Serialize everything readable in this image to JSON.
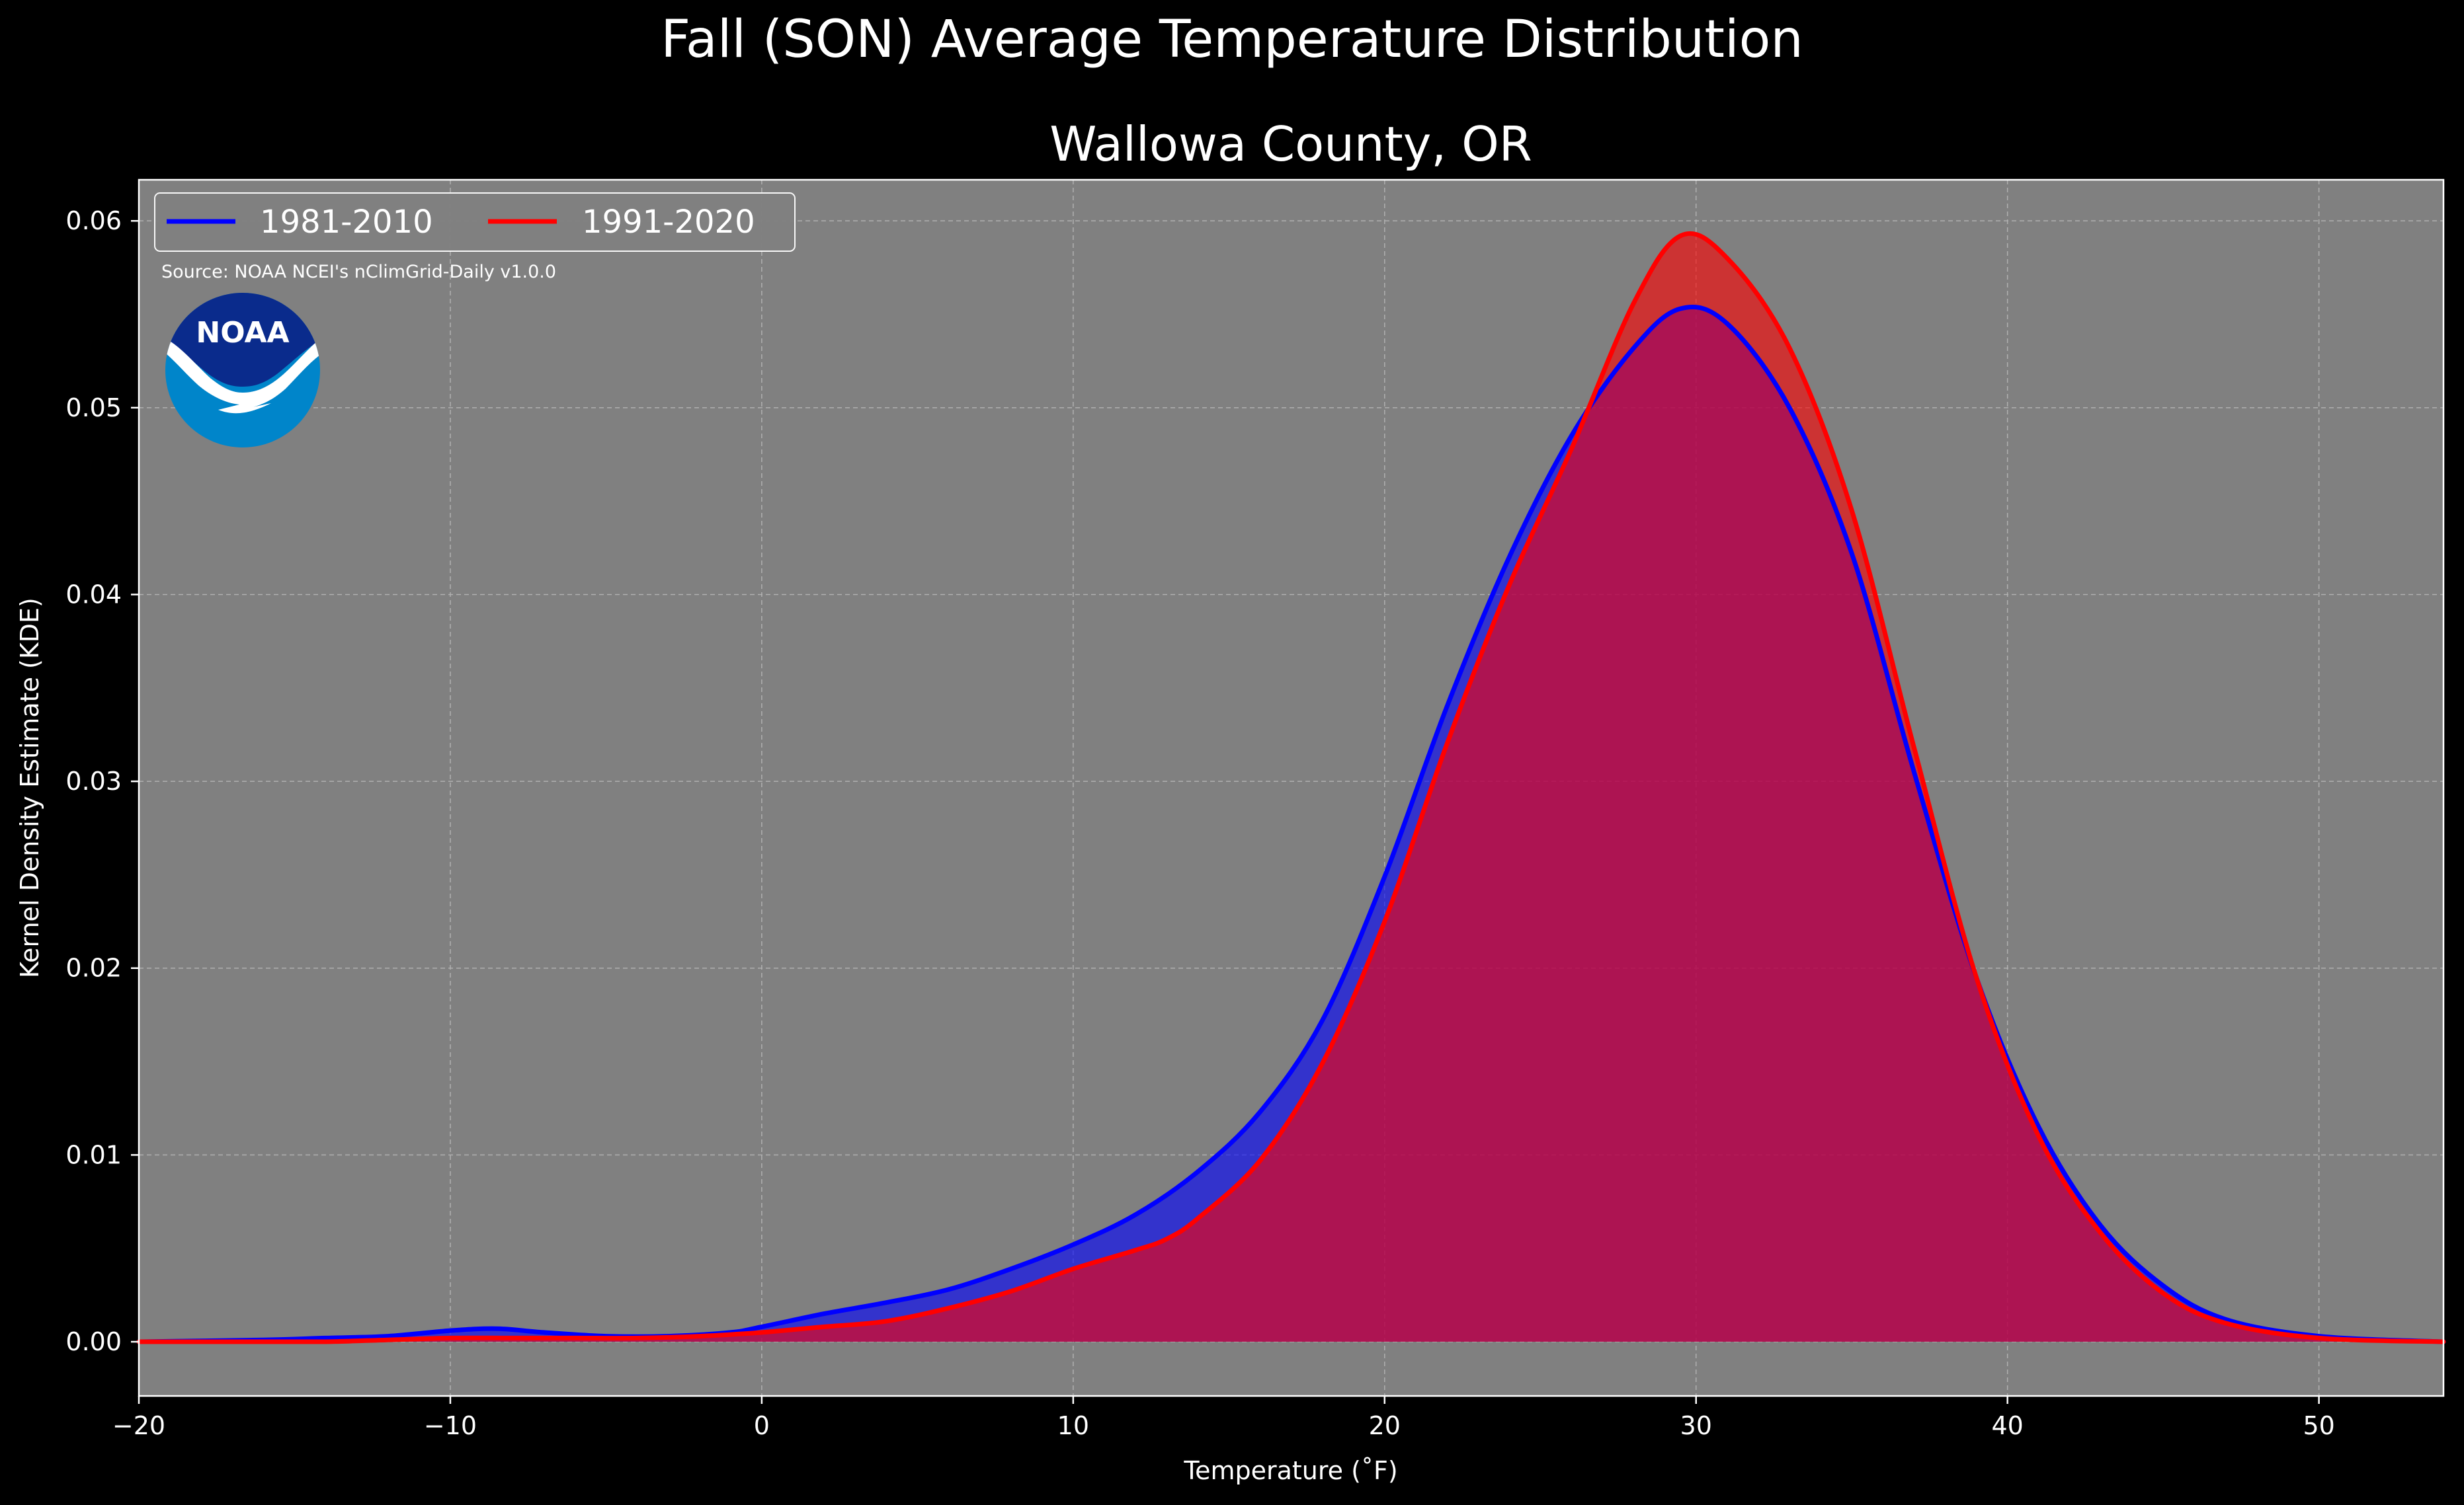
{
  "chart_data": {
    "type": "area",
    "suptitle": "Fall (SON) Average Temperature Distribution",
    "title": "Wallowa County, OR",
    "xlabel": "Temperature ($^\\circ$F)",
    "xlabel_display": "Temperature (˚F)",
    "ylabel": "Kernel Density Estimate (KDE)",
    "xlim": [
      -20,
      54
    ],
    "ylim": [
      -0.0029,
      0.0622
    ],
    "xticks": [
      -20,
      -10,
      0,
      10,
      20,
      30,
      40,
      50
    ],
    "xtick_labels": [
      "−20",
      "−10",
      "0",
      "10",
      "20",
      "30",
      "40",
      "50"
    ],
    "yticks": [
      0.0,
      0.01,
      0.02,
      0.03,
      0.04,
      0.05,
      0.06
    ],
    "ytick_labels": [
      "0.00",
      "0.01",
      "0.02",
      "0.03",
      "0.04",
      "0.05",
      "0.06"
    ],
    "grid": true,
    "legend_position": "top-left",
    "background_color": "#808080",
    "series": [
      {
        "name": "1981-2010",
        "color": "#0000ff",
        "fill_color": "#0000ff",
        "x": [
          -20,
          -16,
          -14,
          -12,
          -10,
          -8.5,
          -7,
          -5,
          -3,
          -1,
          0,
          2,
          4,
          6,
          8,
          10,
          12,
          14,
          16,
          18,
          20,
          22,
          24,
          26,
          28,
          29.5,
          31,
          33,
          35,
          37,
          39,
          41,
          43,
          45,
          47,
          50,
          54
        ],
        "y": [
          0.0,
          0.0001,
          0.0002,
          0.0003,
          0.0006,
          0.0007,
          0.0005,
          0.0003,
          0.0003,
          0.0005,
          0.0008,
          0.0015,
          0.0021,
          0.0028,
          0.0039,
          0.0052,
          0.0068,
          0.0091,
          0.0123,
          0.0172,
          0.0249,
          0.034,
          0.042,
          0.0485,
          0.0532,
          0.0553,
          0.0545,
          0.05,
          0.0422,
          0.0305,
          0.0195,
          0.0115,
          0.0062,
          0.003,
          0.0012,
          0.0003,
          0.0
        ]
      },
      {
        "name": "1991-2020",
        "color": "#ff0000",
        "fill_color": "#ff0000",
        "x": [
          -20,
          -16,
          -14,
          -12,
          -10,
          -8,
          -6,
          -4,
          -2,
          0,
          2,
          4,
          6,
          8,
          10,
          12,
          13,
          14,
          16,
          18,
          20,
          22,
          24,
          26,
          28,
          29.5,
          31,
          33,
          35,
          37,
          39,
          41,
          43,
          45,
          47,
          50,
          54
        ],
        "y": [
          0.0,
          0.0,
          0.0,
          0.0001,
          0.0002,
          0.0002,
          0.0002,
          0.0002,
          0.0003,
          0.0005,
          0.0008,
          0.0011,
          0.0018,
          0.0027,
          0.0039,
          0.0049,
          0.0055,
          0.0066,
          0.0097,
          0.0149,
          0.0225,
          0.032,
          0.0405,
          0.0478,
          0.0556,
          0.0592,
          0.058,
          0.0532,
          0.0445,
          0.0318,
          0.0195,
          0.011,
          0.0058,
          0.0026,
          0.001,
          0.0002,
          0.0
        ]
      }
    ],
    "annotations": [
      "Source: NOAA NCEI's nClimGrid-Daily v1.0.0"
    ],
    "logo": {
      "text": "NOAA",
      "colors": [
        "#0a2b8c",
        "#0085ca",
        "#ffffff"
      ]
    }
  }
}
